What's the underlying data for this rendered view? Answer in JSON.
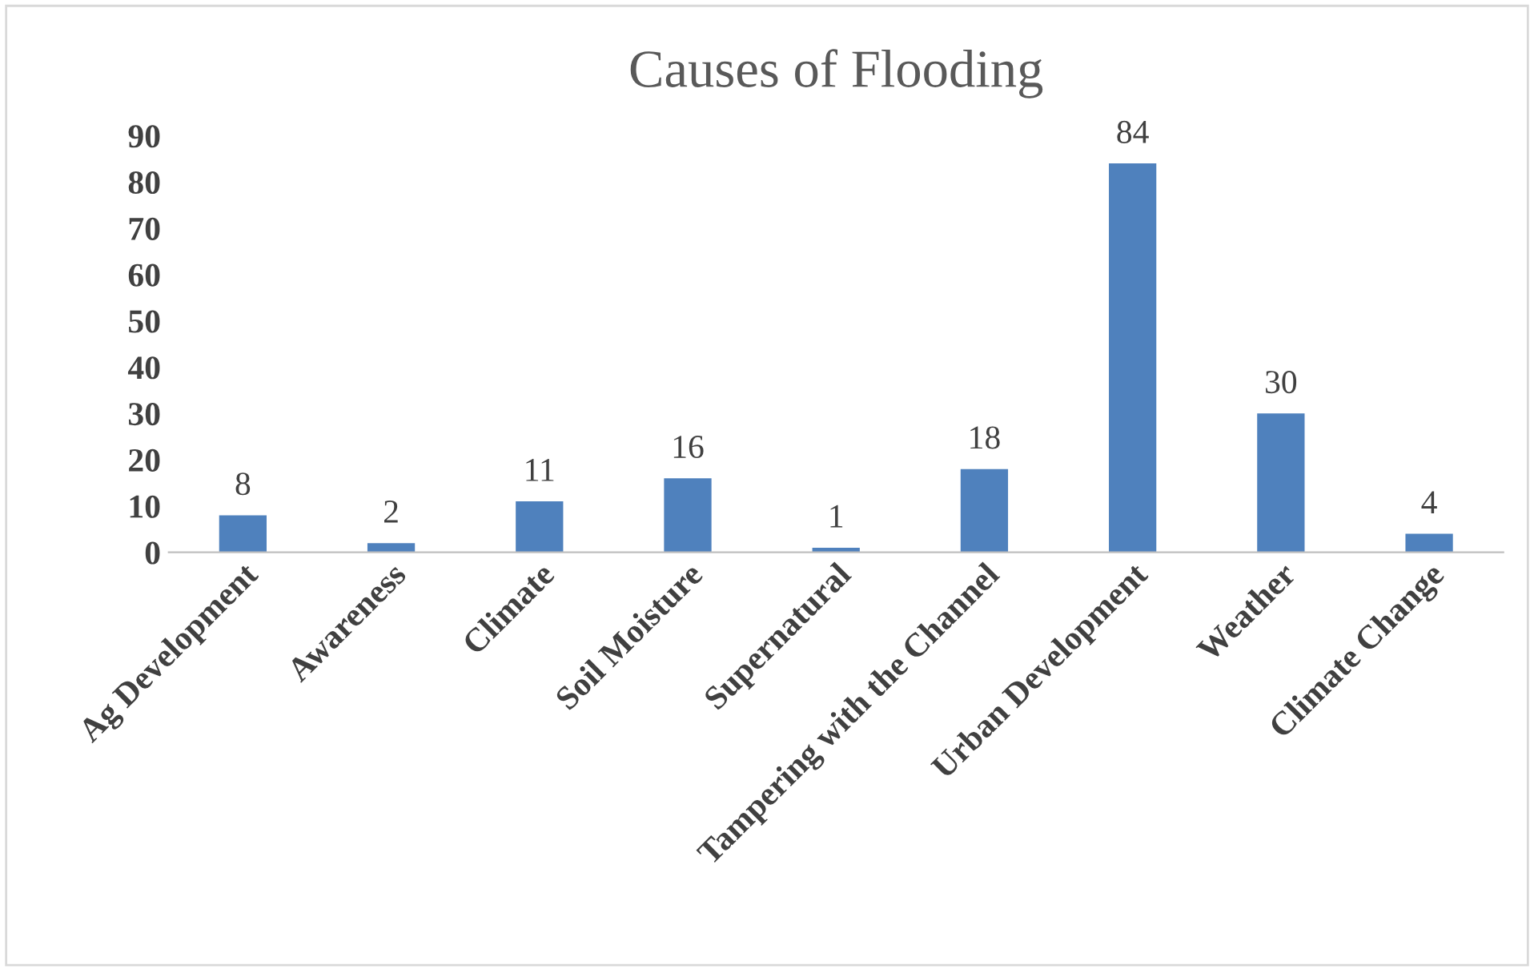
{
  "chart_data": {
    "type": "bar",
    "title": "Causes of Flooding",
    "categories": [
      "Ag Development",
      "Awareness",
      "Climate",
      "Soil Moisture",
      "Supernatural",
      "Tampering with the Channel",
      "Urban Development",
      "Weather",
      "Climate Change"
    ],
    "values": [
      8,
      2,
      11,
      16,
      1,
      18,
      84,
      30,
      4
    ],
    "color": "#4f81bd",
    "ylim": [
      0,
      90
    ],
    "yticks": [
      0,
      10,
      20,
      30,
      40,
      50,
      60,
      70,
      80,
      90
    ],
    "grid": false,
    "legend": false,
    "data_labels": true
  }
}
